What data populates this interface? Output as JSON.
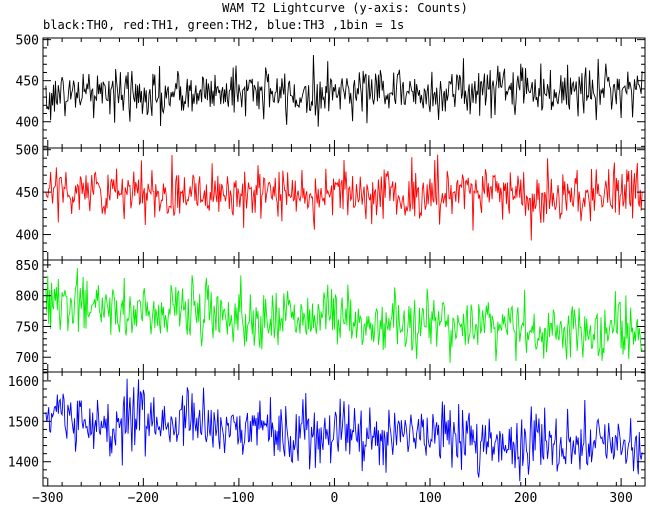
{
  "chart_data": {
    "type": "line",
    "title": "WAM T2 Lightcurve (y-axis: Counts)",
    "subtitle": "black:TH0, red:TH1, green:TH2, blue:TH3 ,1bin = 1s",
    "xlabel": "",
    "xlim": [
      -305,
      325
    ],
    "x_ticks": [
      -300,
      -200,
      -100,
      0,
      100,
      200,
      300
    ],
    "x_tick_labels": [
      "−300",
      "−200",
      "−100",
      "0",
      "100",
      "200",
      "300"
    ],
    "x_range": [
      -302,
      322
    ],
    "bin_seconds": 1,
    "grid": false,
    "legend": "none",
    "panels": [
      {
        "name": "TH0",
        "color": "#000000",
        "ylabel": "",
        "ylim": [
          368,
          502
        ],
        "y_ticks": [
          400,
          450,
          500
        ],
        "y_tick_labels": [
          "400",
          "450",
          "500"
        ],
        "mean_start": 432,
        "mean_end": 441,
        "noise_std": 15
      },
      {
        "name": "TH1",
        "color": "#ff0000",
        "ylabel": "",
        "ylim": [
          370,
          502
        ],
        "y_ticks": [
          400,
          450,
          500
        ],
        "y_tick_labels": [
          "400",
          "450",
          "500"
        ],
        "mean_start": 450,
        "mean_end": 447,
        "noise_std": 16
      },
      {
        "name": "TH2",
        "color": "#00ee00",
        "ylabel": "",
        "ylim": [
          676,
          858
        ],
        "y_ticks": [
          700,
          750,
          800,
          850
        ],
        "y_tick_labels": [
          "700",
          "750",
          "800",
          "850"
        ],
        "mean_start": 785,
        "mean_end": 738,
        "noise_std": 24
      },
      {
        "name": "TH3",
        "color": "#0000ff",
        "ylabel": "",
        "ylim": [
          1340,
          1622
        ],
        "y_ticks": [
          1400,
          1500,
          1600
        ],
        "y_tick_labels": [
          "1400",
          "1500",
          "1600"
        ],
        "mean_start": 1505,
        "mean_end": 1438,
        "noise_std": 38
      }
    ]
  }
}
